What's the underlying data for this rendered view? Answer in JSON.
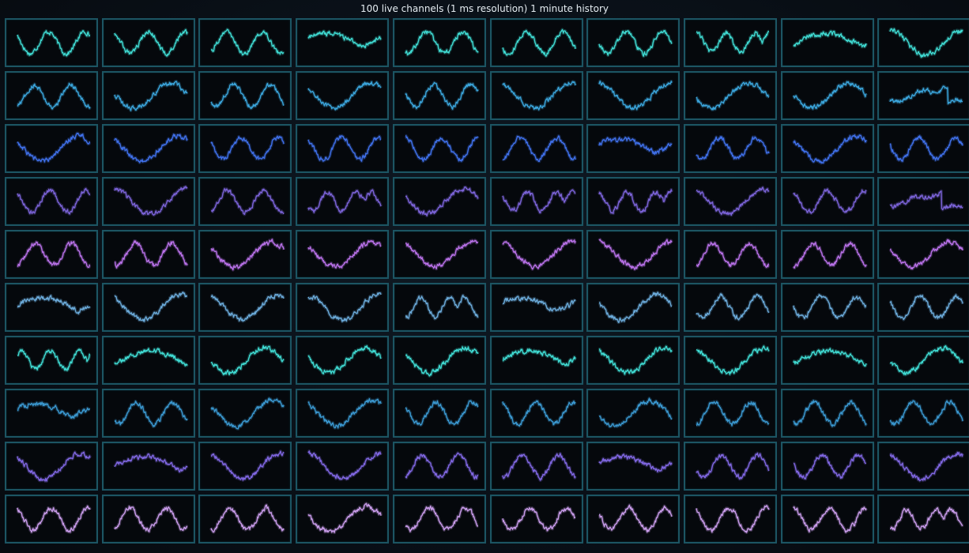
{
  "chart_data": {
    "type": "line",
    "title": "100 live channels (1 ms resolution) 1 minute history",
    "rows": 10,
    "cols": 10,
    "channel_count": 100,
    "row_colors": [
      "#3fd9d1",
      "#3aa3d9",
      "#3f6fe8",
      "#7a62d6",
      "#b770e6",
      "#6aa9d8",
      "#3fd9d1",
      "#3a97cf",
      "#7f66e0",
      "#c79ae8"
    ],
    "grid": false,
    "legend": "none",
    "series_shapes": [
      "w",
      "w",
      "w",
      "arch",
      "w",
      "w",
      "w",
      "m",
      "arch",
      "valley",
      "w",
      "valley",
      "w",
      "valley",
      "w",
      "valley",
      "valley",
      "valley",
      "valley",
      "rise",
      "valley",
      "valley",
      "w",
      "w",
      "w",
      "w",
      "arch",
      "w",
      "valley",
      "w",
      "w",
      "valley",
      "w",
      "m",
      "valley",
      "m",
      "m",
      "valley",
      "w",
      "rise",
      "w",
      "w",
      "valley",
      "valley",
      "valley",
      "valley",
      "valley",
      "w",
      "w",
      "valley",
      "arch",
      "valley",
      "valley",
      "valley",
      "m",
      "arch",
      "valley",
      "w",
      "w",
      "w",
      "m",
      "arch",
      "valley",
      "valley",
      "valley",
      "arch",
      "valley",
      "valley",
      "arch",
      "valley",
      "arch",
      "w",
      "valley",
      "valley",
      "w",
      "w",
      "valley",
      "w",
      "w",
      "w",
      "valley",
      "arch",
      "valley",
      "valley",
      "w",
      "w",
      "arch",
      "w",
      "w",
      "valley",
      "w",
      "w",
      "w",
      "valley",
      "w",
      "w",
      "w",
      "w",
      "w",
      "m"
    ]
  }
}
